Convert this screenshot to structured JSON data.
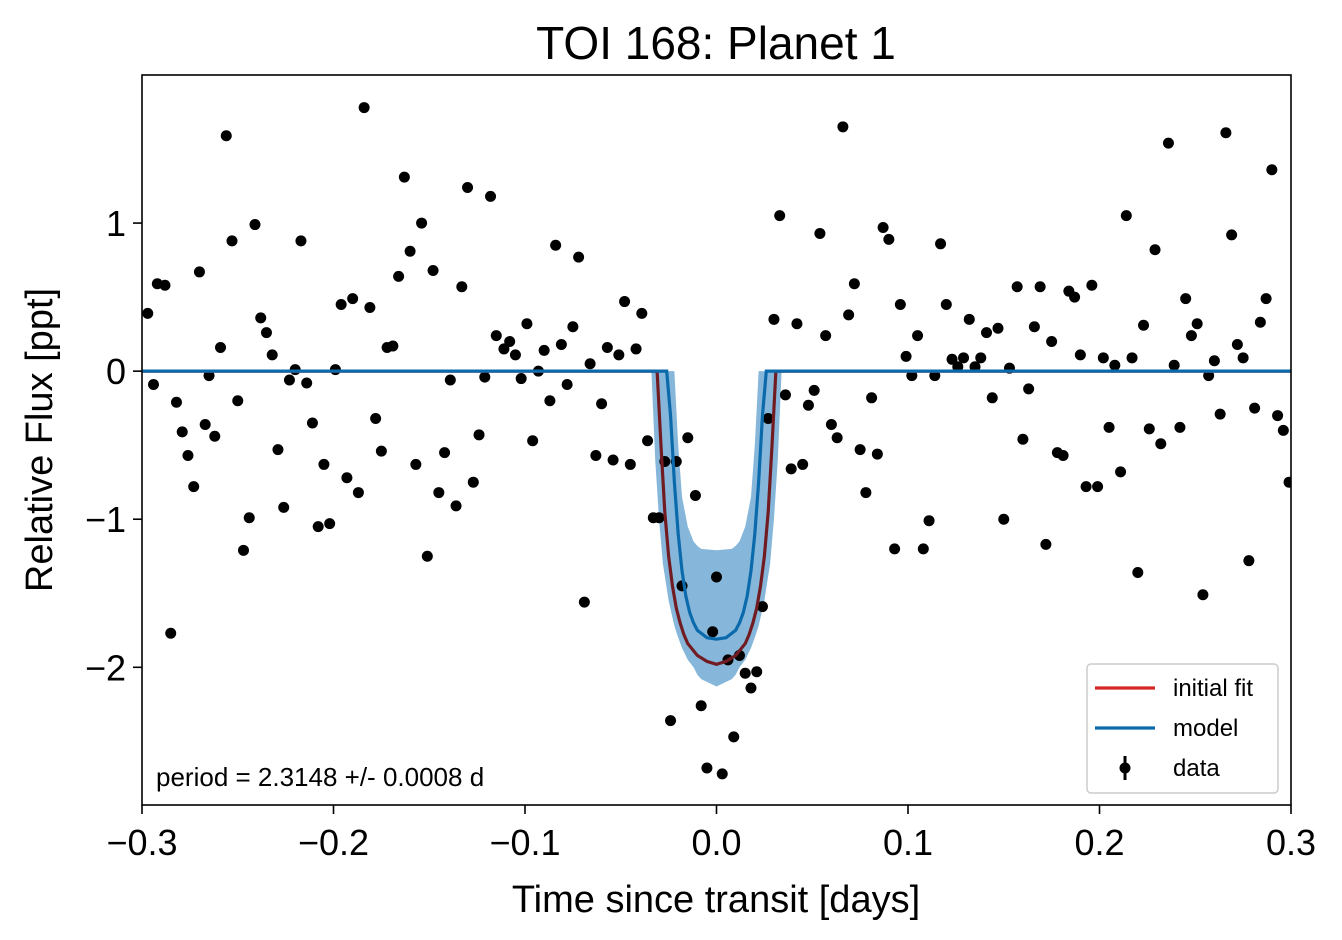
{
  "chart_data": {
    "type": "scatter",
    "title": "TOI 168: Planet 1",
    "x_label": "Time since transit [days]",
    "y_label": "Relative Flux [ppt]",
    "annotation": "period = 2.3148 +/- 0.0008 d",
    "xlim": [
      -0.3,
      0.3
    ],
    "ylim": [
      -2.93,
      2.0
    ],
    "xticks": [
      {
        "value": -0.3,
        "label": "−0.3"
      },
      {
        "value": -0.2,
        "label": "−0.2"
      },
      {
        "value": -0.1,
        "label": "−0.1"
      },
      {
        "value": 0,
        "label": "0.0"
      },
      0.1,
      0.2,
      0.3
    ],
    "yticks": [
      {
        "value": -2,
        "label": "−2"
      },
      {
        "value": -1,
        "label": "−1"
      },
      0,
      1
    ],
    "legend": "lower right",
    "band": {
      "color": "#7fb3d8",
      "x": [
        -0.3,
        -0.034,
        -0.032,
        -0.03,
        -0.028,
        -0.025,
        -0.022,
        -0.02,
        -0.018,
        -0.015,
        -0.012,
        -0.01,
        -0.008,
        0,
        0.008,
        0.01,
        0.012,
        0.015,
        0.018,
        0.02,
        0.022,
        0.025,
        0.028,
        0.03,
        0.032,
        0.034,
        0.3
      ],
      "upper": [
        0,
        0,
        0,
        0,
        0,
        0,
        0,
        -0.5,
        -0.85,
        -1.05,
        -1.15,
        -1.18,
        -1.2,
        -1.21,
        -1.2,
        -1.18,
        -1.15,
        -1.05,
        -0.85,
        -0.5,
        0,
        0,
        0,
        0,
        0,
        0,
        0
      ],
      "lower": [
        0,
        0,
        -0.6,
        -1.0,
        -1.3,
        -1.55,
        -1.72,
        -1.8,
        -1.87,
        -1.95,
        -2.0,
        -2.05,
        -2.08,
        -2.13,
        -2.08,
        -2.05,
        -2.0,
        -1.95,
        -1.87,
        -1.8,
        -1.72,
        -1.55,
        -1.3,
        -1.0,
        -0.6,
        0,
        0
      ]
    },
    "series": [
      {
        "name": "initial fit",
        "type": "line",
        "color": "#d62728",
        "x": [
          -0.3,
          -0.031,
          -0.029,
          -0.027,
          -0.025,
          -0.023,
          -0.021,
          -0.019,
          -0.017,
          -0.015,
          -0.01,
          -0.005,
          0,
          0.005,
          0.01,
          0.015,
          0.017,
          0.019,
          0.021,
          0.023,
          0.025,
          0.027,
          0.029,
          0.031,
          0.3
        ],
        "values": [
          0,
          0,
          -0.5,
          -0.95,
          -1.25,
          -1.45,
          -1.6,
          -1.7,
          -1.78,
          -1.84,
          -1.92,
          -1.96,
          -1.98,
          -1.96,
          -1.92,
          -1.84,
          -1.78,
          -1.7,
          -1.6,
          -1.45,
          -1.25,
          -0.95,
          -0.5,
          0,
          0
        ]
      },
      {
        "name": "model",
        "type": "line",
        "color": "#0b6aab",
        "x": [
          -0.3,
          -0.026,
          -0.024,
          -0.022,
          -0.02,
          -0.018,
          -0.016,
          -0.014,
          -0.012,
          -0.01,
          -0.005,
          0,
          0.005,
          0.01,
          0.012,
          0.014,
          0.016,
          0.018,
          0.02,
          0.022,
          0.024,
          0.026,
          0.3
        ],
        "values": [
          0,
          0,
          -0.3,
          -0.75,
          -1.1,
          -1.35,
          -1.52,
          -1.63,
          -1.7,
          -1.75,
          -1.8,
          -1.81,
          -1.8,
          -1.75,
          -1.7,
          -1.63,
          -1.52,
          -1.35,
          -1.1,
          -0.75,
          -0.3,
          0,
          0
        ]
      },
      {
        "name": "data",
        "type": "scatter",
        "color": "#000000",
        "x": [
          -0.297,
          -0.294,
          -0.292,
          -0.288,
          -0.285,
          -0.282,
          -0.279,
          -0.276,
          -0.273,
          -0.27,
          -0.267,
          -0.265,
          -0.262,
          -0.259,
          -0.256,
          -0.253,
          -0.25,
          -0.247,
          -0.244,
          -0.241,
          -0.238,
          -0.235,
          -0.232,
          -0.229,
          -0.226,
          -0.223,
          -0.22,
          -0.217,
          -0.214,
          -0.211,
          -0.208,
          -0.205,
          -0.202,
          -0.199,
          -0.196,
          -0.193,
          -0.19,
          -0.187,
          -0.184,
          -0.181,
          -0.178,
          -0.175,
          -0.172,
          -0.169,
          -0.166,
          -0.163,
          -0.16,
          -0.157,
          -0.154,
          -0.151,
          -0.148,
          -0.145,
          -0.142,
          -0.139,
          -0.136,
          -0.133,
          -0.13,
          -0.127,
          -0.124,
          -0.121,
          -0.118,
          -0.115,
          -0.111,
          -0.108,
          -0.105,
          -0.102,
          -0.099,
          -0.096,
          -0.093,
          -0.09,
          -0.087,
          -0.084,
          -0.081,
          -0.078,
          -0.075,
          -0.072,
          -0.069,
          -0.066,
          -0.063,
          -0.06,
          -0.057,
          -0.054,
          -0.051,
          -0.048,
          -0.045,
          -0.042,
          -0.039,
          -0.036,
          -0.033,
          -0.03,
          -0.027,
          -0.024,
          -0.021,
          -0.018,
          -0.015,
          -0.011,
          -0.008,
          -0.005,
          -0.002,
          0,
          0.003,
          0.006,
          0.009,
          0.012,
          0.015,
          0.018,
          0.021,
          0.024,
          0.027,
          0.03,
          0.033,
          0.036,
          0.039,
          0.042,
          0.045,
          0.048,
          0.051,
          0.054,
          0.057,
          0.06,
          0.063,
          0.066,
          0.069,
          0.072,
          0.075,
          0.078,
          0.081,
          0.084,
          0.087,
          0.09,
          0.093,
          0.096,
          0.099,
          0.102,
          0.105,
          0.108,
          0.111,
          0.114,
          0.117,
          0.12,
          0.123,
          0.126,
          0.129,
          0.132,
          0.135,
          0.138,
          0.141,
          0.144,
          0.147,
          0.15,
          0.153,
          0.157,
          0.16,
          0.163,
          0.166,
          0.169,
          0.172,
          0.175,
          0.178,
          0.181,
          0.184,
          0.187,
          0.19,
          0.193,
          0.196,
          0.199,
          0.202,
          0.205,
          0.208,
          0.211,
          0.214,
          0.217,
          0.22,
          0.223,
          0.226,
          0.229,
          0.232,
          0.236,
          0.239,
          0.242,
          0.245,
          0.248,
          0.251,
          0.254,
          0.257,
          0.26,
          0.263,
          0.266,
          0.269,
          0.272,
          0.275,
          0.278,
          0.281,
          0.284,
          0.287,
          0.29,
          0.293,
          0.296,
          0.299
        ],
        "values": [
          0.39,
          -0.09,
          0.59,
          0.58,
          -1.77,
          -0.21,
          -0.41,
          -0.57,
          -0.78,
          0.67,
          -0.36,
          -0.03,
          -0.44,
          0.16,
          1.59,
          0.88,
          -0.2,
          -1.21,
          -0.99,
          0.99,
          0.36,
          0.26,
          0.11,
          -0.53,
          -0.92,
          -0.06,
          0.01,
          0.88,
          -0.08,
          -0.35,
          -1.05,
          -0.63,
          -1.03,
          0.01,
          0.45,
          -0.72,
          0.49,
          -0.82,
          1.78,
          0.43,
          -0.32,
          -0.54,
          0.16,
          0.17,
          0.64,
          1.31,
          0.81,
          -0.63,
          1.0,
          -1.25,
          0.68,
          -0.82,
          -0.55,
          -0.06,
          -0.91,
          0.57,
          1.24,
          -0.75,
          -0.43,
          -0.04,
          1.18,
          0.24,
          0.15,
          0.2,
          0.11,
          -0.05,
          0.32,
          -0.47,
          0.0,
          0.14,
          -0.2,
          0.85,
          0.18,
          -0.09,
          0.3,
          0.77,
          -1.56,
          0.05,
          -0.57,
          -0.22,
          0.16,
          -0.6,
          0.11,
          0.47,
          -0.63,
          0.15,
          0.39,
          -0.47,
          -0.99,
          -0.99,
          -0.61,
          -2.36,
          -0.61,
          -1.45,
          -0.45,
          -0.84,
          -2.26,
          -2.68,
          -1.76,
          -1.39,
          -2.72,
          -1.95,
          -2.47,
          -1.92,
          -2.04,
          -2.14,
          -2.03,
          -1.59,
          -0.32,
          0.35,
          1.05,
          -0.16,
          -0.66,
          0.32,
          -0.63,
          -0.23,
          -0.13,
          0.93,
          0.24,
          -0.36,
          -0.45,
          1.65,
          0.38,
          0.59,
          -0.53,
          -0.82,
          -0.18,
          -0.56,
          0.97,
          0.89,
          -1.2,
          0.45,
          0.1,
          -0.03,
          0.24,
          -1.2,
          -1.01,
          -0.03,
          0.86,
          0.45,
          0.08,
          0.03,
          0.09,
          0.35,
          0.03,
          0.09,
          0.26,
          -0.18,
          0.29,
          -1.0,
          0.02,
          0.57,
          -0.46,
          -0.12,
          0.3,
          0.57,
          -1.17,
          0.2,
          -0.55,
          -0.57,
          0.54,
          0.5,
          0.11,
          -0.78,
          0.58,
          -0.78,
          0.09,
          -0.38,
          0.04,
          -0.68,
          1.05,
          0.09,
          -1.36,
          0.31,
          -0.39,
          0.82,
          -0.49,
          1.54,
          0.04,
          -0.38,
          0.49,
          0.24,
          0.32,
          -1.51,
          -0.03,
          0.07,
          -0.29,
          1.61,
          0.92,
          0.18,
          0.09,
          -1.28,
          -0.25,
          0.33,
          0.49,
          1.36,
          -0.3,
          -0.4,
          -0.75
        ]
      }
    ]
  }
}
